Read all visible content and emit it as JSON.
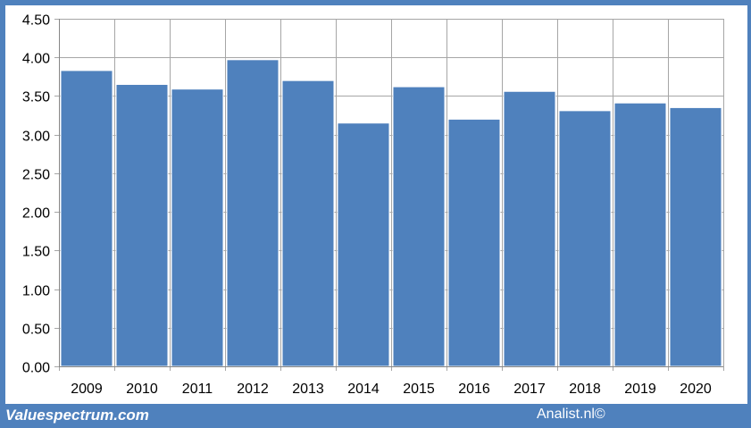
{
  "footer": {
    "source_left": "Valuespectrum.com",
    "source_right": "Analist.nl©"
  },
  "colors": {
    "frame": "#4f81bd",
    "bar_fill": "#4f81bd",
    "bar_stroke": "#ffffff",
    "gridline": "#a6a6a6",
    "plot_background": "#ffffff"
  },
  "chart_data": {
    "type": "bar",
    "title": "",
    "xlabel": "",
    "ylabel": "",
    "categories": [
      "2009",
      "2010",
      "2011",
      "2012",
      "2013",
      "2014",
      "2015",
      "2016",
      "2017",
      "2018",
      "2019",
      "2020"
    ],
    "values": [
      3.83,
      3.65,
      3.59,
      3.97,
      3.7,
      3.15,
      3.62,
      3.2,
      3.56,
      3.31,
      3.41,
      3.35
    ],
    "ylim": [
      0,
      4.5
    ],
    "y_ticks": [
      "0.00",
      "0.50",
      "1.00",
      "1.50",
      "2.00",
      "2.50",
      "3.00",
      "3.50",
      "4.00",
      "4.50"
    ],
    "grid": {
      "horizontal": true,
      "vertical": true
    },
    "legend": "none"
  }
}
